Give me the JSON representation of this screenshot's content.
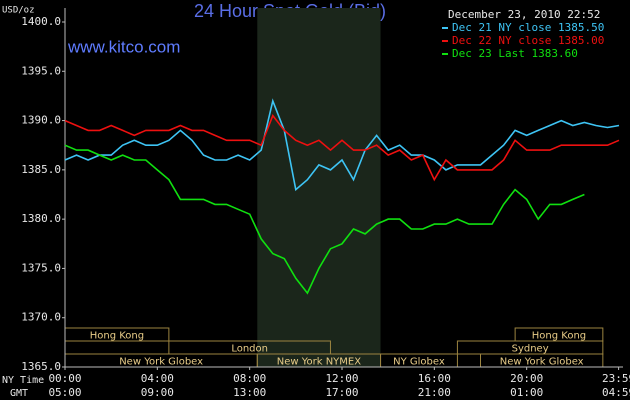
{
  "chart_data": {
    "type": "line",
    "title": "24 Hour Spot Gold (Bid)",
    "site": "www.kitco.com",
    "timestamp": "December 23, 2010 22:52",
    "y_label": "USD/oz",
    "x_row_label": "NY Time",
    "x2_row_label": "GMT",
    "x": [
      0,
      0.5,
      1,
      1.5,
      2,
      2.5,
      3,
      3.5,
      4,
      4.5,
      5,
      5.5,
      6,
      6.5,
      7,
      7.5,
      8,
      8.5,
      9,
      9.5,
      10,
      10.5,
      11,
      11.5,
      12,
      12.5,
      13,
      13.5,
      14,
      14.5,
      15,
      15.5,
      16,
      16.5,
      17,
      17.5,
      18,
      18.5,
      19,
      19.5,
      20,
      20.5,
      21,
      21.5,
      22,
      22.5,
      23,
      23.5,
      24
    ],
    "xlim": [
      0,
      24
    ],
    "xticks": [
      {
        "value": 0,
        "label": "00:00"
      },
      {
        "value": 4,
        "label": "04:00"
      },
      {
        "value": 8,
        "label": "08:00"
      },
      {
        "value": 12,
        "label": "12:00"
      },
      {
        "value": 16,
        "label": "16:00"
      },
      {
        "value": 20,
        "label": "20:00"
      },
      {
        "value": 23.983,
        "label": "23:59"
      }
    ],
    "x2ticks": [
      {
        "value": 0,
        "label": "05:00"
      },
      {
        "value": 4,
        "label": "09:00"
      },
      {
        "value": 8,
        "label": "13:00"
      },
      {
        "value": 12,
        "label": "17:00"
      },
      {
        "value": 16,
        "label": "21:00"
      },
      {
        "value": 20,
        "label": "01:00"
      },
      {
        "value": 23.983,
        "label": "04:59"
      }
    ],
    "ylim": [
      1365,
      1400
    ],
    "yticks": [
      {
        "value": 1365,
        "label": "1365.0"
      },
      {
        "value": 1370,
        "label": "1370.0"
      },
      {
        "value": 1375,
        "label": "1375.0"
      },
      {
        "value": 1380,
        "label": "1380.0"
      },
      {
        "value": 1385,
        "label": "1385.0"
      },
      {
        "value": 1390,
        "label": "1390.0"
      },
      {
        "value": 1395,
        "label": "1395.0"
      },
      {
        "value": 1400,
        "label": "1400.0"
      }
    ],
    "grid": false,
    "series": [
      {
        "name": "Dec 21 NY close 1385.50",
        "color": "#3ec4f4",
        "values": [
          1386,
          1386.5,
          1386,
          1386.5,
          1386.5,
          1387.5,
          1388,
          1387.5,
          1387.5,
          1388,
          1389,
          1388,
          1386.5,
          1386,
          1386,
          1386.5,
          1386,
          1387,
          1392,
          1389,
          1383,
          1384,
          1385.5,
          1385,
          1386,
          1384,
          1387,
          1388.5,
          1387,
          1387.5,
          1386.5,
          1386.5,
          1386,
          1385,
          1385.5,
          1385.5,
          1385.5,
          1386.5,
          1387.5,
          1389,
          1388.5,
          1389,
          1389.5,
          1390,
          1389.5,
          1389.8,
          1389.5,
          1389.3,
          1389.5
        ]
      },
      {
        "name": "Dec 22 NY close 1385.00",
        "color": "#ee1010",
        "values": [
          1390,
          1389.5,
          1389,
          1389,
          1389.5,
          1389,
          1388.5,
          1389,
          1389,
          1389,
          1389.5,
          1389,
          1389,
          1388.5,
          1388,
          1388,
          1388,
          1387.5,
          1390.5,
          1389,
          1388,
          1387.5,
          1388,
          1387,
          1388,
          1387,
          1387,
          1387.5,
          1386.5,
          1387,
          1386,
          1386.5,
          1384,
          1386,
          1385,
          1385,
          1385,
          1385,
          1386,
          1388,
          1387,
          1387,
          1387,
          1387.5,
          1387.5,
          1387.5,
          1387.5,
          1387.5,
          1388
        ]
      },
      {
        "name": "Dec 23 Last 1383.60",
        "color": "#10e010",
        "values": [
          1387.5,
          1387,
          1387,
          1386.5,
          1386,
          1386.5,
          1386,
          1386,
          1385,
          1384,
          1382,
          1382,
          1382,
          1381.5,
          1381.5,
          1381,
          1380.5,
          1378,
          1376.5,
          1376,
          1374,
          1372.5,
          1375,
          1377,
          1377.5,
          1379,
          1378.5,
          1379.5,
          1380,
          1380,
          1379,
          1379,
          1379.5,
          1379.5,
          1380,
          1379.5,
          1379.5,
          1379.5,
          1381.5,
          1383,
          1382,
          1380,
          1381.5,
          1381.5,
          1382,
          1382.5,
          null,
          null,
          null
        ]
      }
    ],
    "session_rows": [
      [
        {
          "label": "Hong Kong",
          "start": 0,
          "end": 4.5
        },
        {
          "label": "Hong Kong",
          "start": 19.5,
          "end": 23.3
        }
      ],
      [
        {
          "label": "London",
          "start": 4.5,
          "end": 11.5
        },
        {
          "label": "Sydney",
          "start": 17,
          "end": 23.3
        }
      ],
      [
        {
          "label": "New York Globex",
          "start": 0,
          "end": 8.33
        },
        {
          "label": "New York NYMEX",
          "start": 8.33,
          "end": 13.67
        },
        {
          "label": "NY Globex",
          "start": 13.67,
          "end": 17
        },
        {
          "label": "New York Globex",
          "start": 18,
          "end": 23.3
        }
      ]
    ],
    "highlight_session": {
      "start": 8.33,
      "end": 13.67
    }
  }
}
